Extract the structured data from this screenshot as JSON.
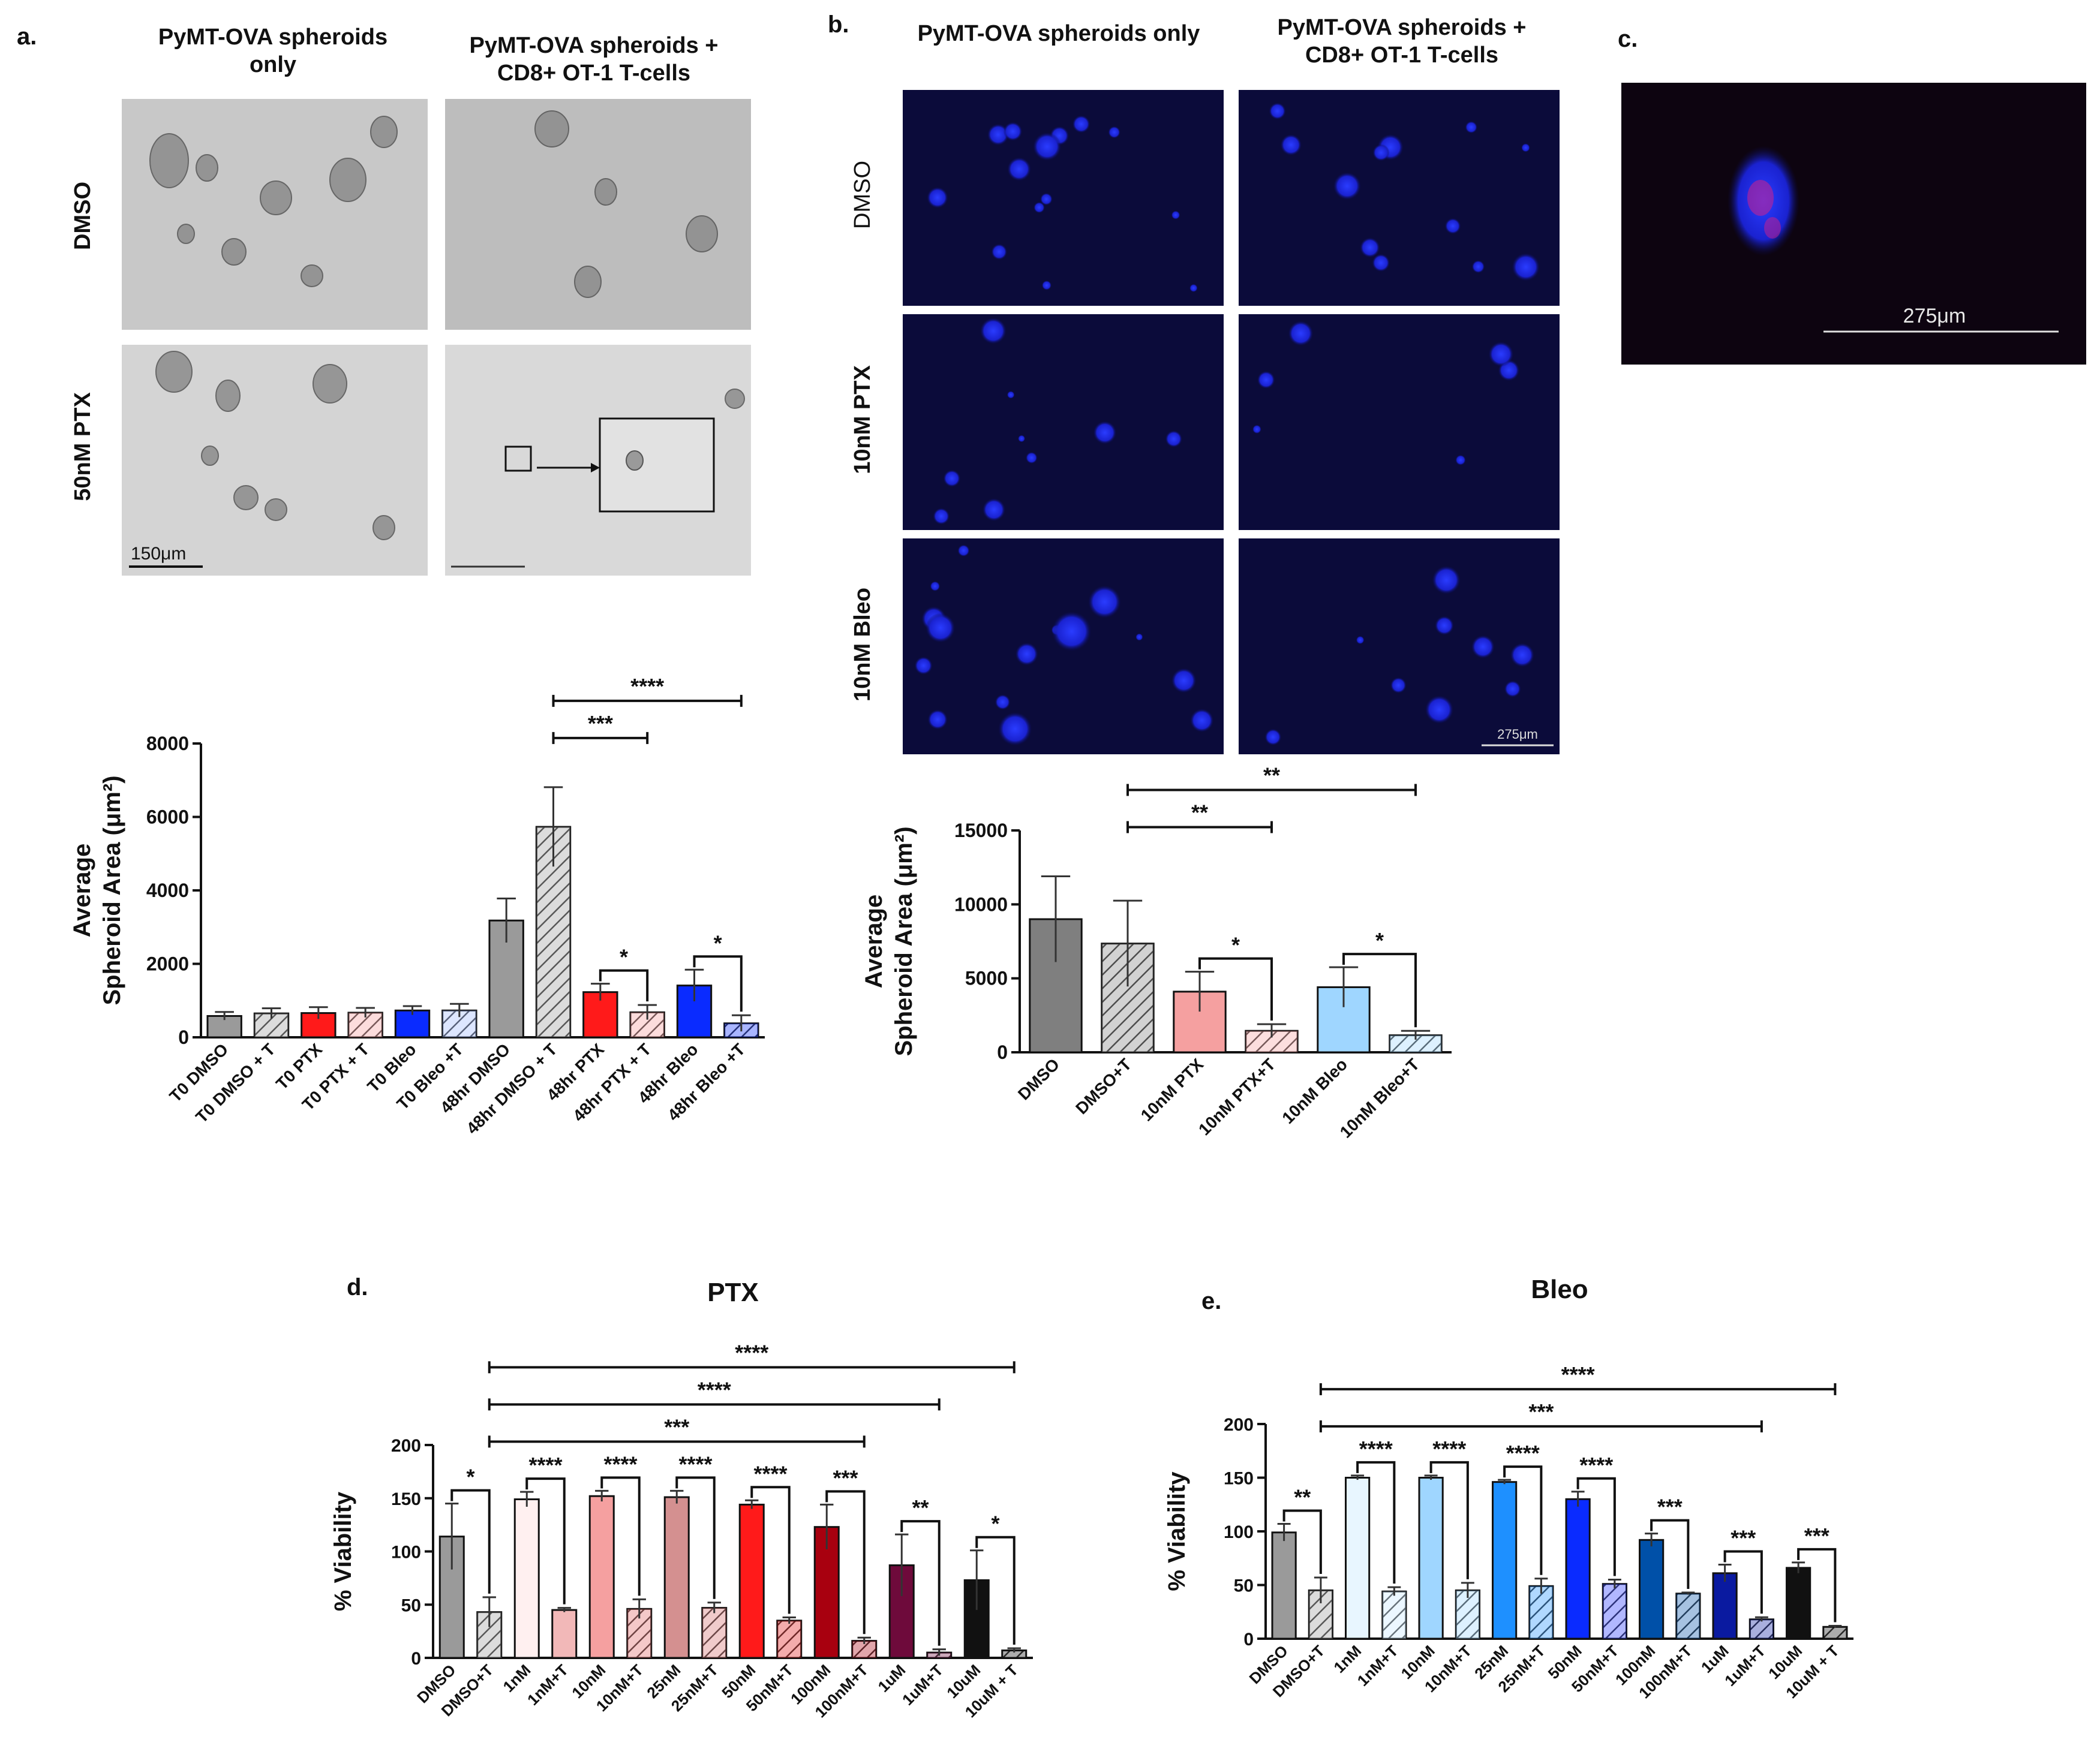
{
  "panel_a": {
    "letter": "a.",
    "col_headers": [
      "PyMT-OVA spheroids only",
      "PyMT-OVA spheroids + CD8+ OT-1 T-cells"
    ],
    "row_labels": [
      "DMSO",
      "50nM PTX"
    ],
    "scale_bar": "150μm"
  },
  "panel_b": {
    "letter": "b.",
    "col_headers": [
      "PyMT-OVA spheroids only",
      "PyMT-OVA spheroids + CD8+ OT-1 T-cells"
    ],
    "row_labels": [
      "DMSO",
      "10nM PTX",
      "10nM Bleo"
    ],
    "scale_bar": "275μm"
  },
  "panel_c": {
    "letter": "c.",
    "scale_bar": "275μm"
  },
  "panel_d": {
    "letter": "d."
  },
  "panel_e": {
    "letter": "e."
  },
  "colors": {
    "gray": "#9a9a9a",
    "red": "#ff1a1a",
    "blue": "#0a2bff",
    "pink": "#f59a9a",
    "lightblue": "#9fd6ff",
    "darkred": "#a8000f",
    "maroon": "#6e0a3b",
    "black": "#111111"
  },
  "chart_data": [
    {
      "id": "a",
      "type": "bar",
      "ylabel": [
        "Average",
        "Spheroid Area (μm²)"
      ],
      "ylim": [
        0,
        8000
      ],
      "yticks": [
        0,
        2000,
        4000,
        6000,
        8000
      ],
      "categories": [
        "T0 DMSO",
        "T0 DMSO + T",
        "T0 PTX",
        "T0 PTX + T",
        "T0 Bleo",
        "T0 Bleo +T",
        "48hr DMSO",
        "48hr DMSO + T",
        "48hr PTX",
        "48hr PTX + T",
        "48hr Bleo",
        "48hr Bleo +T"
      ],
      "values": [
        580,
        650,
        660,
        670,
        730,
        730,
        3180,
        5730,
        1230,
        680,
        1410,
        380
      ],
      "errors": [
        110,
        140,
        160,
        130,
        120,
        180,
        600,
        1080,
        230,
        200,
        430,
        220
      ],
      "colors": [
        "#9a9a9a",
        "#9a9a9a",
        "#ff1a1a",
        "#f59a9a",
        "#0a2bff",
        "#9fb6ff",
        "#9a9a9a",
        "#9a9a9a",
        "#ff1a1a",
        "#f59a9a",
        "#0a2bff",
        "#0a2bff"
      ],
      "hatched": [
        false,
        true,
        false,
        true,
        false,
        true,
        false,
        true,
        false,
        true,
        false,
        true
      ],
      "significance": [
        {
          "from": 7,
          "to": 11,
          "label": "****"
        },
        {
          "from": 7,
          "to": 9,
          "label": "***"
        },
        {
          "from": 8,
          "to": 9,
          "label": "*"
        },
        {
          "from": 10,
          "to": 11,
          "label": "*"
        }
      ]
    },
    {
      "id": "b",
      "type": "bar",
      "ylabel": [
        "Average",
        "Spheroid Area (μm²)"
      ],
      "ylim": [
        0,
        15000
      ],
      "yticks": [
        0,
        5000,
        10000,
        15000
      ],
      "categories": [
        "DMSO",
        "DMSO+T",
        "10nM PTX",
        "10nM PTX+T",
        "10nM Bleo",
        "10nM Bleo+T"
      ],
      "values": [
        9000,
        7350,
        4100,
        1450,
        4400,
        1150
      ],
      "errors": [
        2900,
        2900,
        1350,
        450,
        1350,
        300
      ],
      "colors": [
        "#7f7f7f",
        "#7f7f7f",
        "#f5a0a0",
        "#f5a0a0",
        "#9fd6ff",
        "#9fd6ff"
      ],
      "hatched": [
        false,
        true,
        false,
        true,
        false,
        true
      ],
      "significance": [
        {
          "from": 1,
          "to": 5,
          "label": "**"
        },
        {
          "from": 1,
          "to": 3,
          "label": "**"
        },
        {
          "from": 2,
          "to": 3,
          "label": "*"
        },
        {
          "from": 4,
          "to": 5,
          "label": "*"
        }
      ]
    },
    {
      "id": "d",
      "type": "bar",
      "title": "PTX",
      "ylabel": [
        "% Viability"
      ],
      "ylim": [
        0,
        200
      ],
      "yticks": [
        0,
        50,
        100,
        150,
        200
      ],
      "categories": [
        "DMSO",
        "DMSO+T",
        "1nM",
        "1nM+T",
        "10nM",
        "10nM+T",
        "25nM",
        "25nM+T",
        "50nM",
        "50nM+T",
        "100nM",
        "100nM+T",
        "1uM",
        "1uM+T",
        "10uM",
        "10uM + T"
      ],
      "values": [
        114,
        43,
        149,
        45,
        152,
        46,
        151,
        47,
        144,
        35,
        123,
        16,
        87,
        5,
        73,
        7
      ],
      "errors": [
        31,
        14,
        7,
        2,
        5,
        9,
        6,
        5,
        4,
        3,
        21,
        3,
        29,
        3,
        28,
        2
      ],
      "colors": [
        "#9a9a9a",
        "#9a9a9a",
        "#fff0f0",
        "#f2b8b8",
        "#f5a0a0",
        "#e06060",
        "#d49090",
        "#d46a6a",
        "#ff1a1a",
        "#e01010",
        "#a8000f",
        "#a8000f",
        "#6e0a3b",
        "#6e0a3b",
        "#111111",
        "#111111"
      ],
      "hatched": [
        false,
        true,
        false,
        false,
        false,
        true,
        false,
        true,
        false,
        true,
        false,
        true,
        false,
        true,
        false,
        true
      ],
      "significance": [
        {
          "from": 1,
          "to": 15,
          "label": "****"
        },
        {
          "from": 1,
          "to": 13,
          "label": "****"
        },
        {
          "from": 1,
          "to": 11,
          "label": "***"
        },
        {
          "from": 0,
          "to": 1,
          "label": "*"
        },
        {
          "from": 2,
          "to": 3,
          "label": "****"
        },
        {
          "from": 4,
          "to": 5,
          "label": "****"
        },
        {
          "from": 6,
          "to": 7,
          "label": "****"
        },
        {
          "from": 8,
          "to": 9,
          "label": "****"
        },
        {
          "from": 10,
          "to": 11,
          "label": "***"
        },
        {
          "from": 12,
          "to": 13,
          "label": "**"
        },
        {
          "from": 14,
          "to": 15,
          "label": "*"
        }
      ]
    },
    {
      "id": "e",
      "type": "bar",
      "title": "Bleo",
      "ylabel": [
        "% Viability"
      ],
      "ylim": [
        0,
        200
      ],
      "yticks": [
        0,
        50,
        100,
        150,
        200
      ],
      "categories": [
        "DMSO",
        "DMSO+T",
        "1nM",
        "1nM+T",
        "10nM",
        "10nM+T",
        "25nM",
        "25nM+T",
        "50nM",
        "50nM+T",
        "100nM",
        "100nM+T",
        "1uM",
        "1uM+T",
        "10uM",
        "10uM + T"
      ],
      "values": [
        99,
        45,
        150,
        44,
        150,
        45,
        146,
        49,
        130,
        51,
        92,
        42,
        61,
        18,
        66,
        11
      ],
      "errors": [
        8,
        12,
        2,
        4,
        2,
        7,
        2,
        7,
        7,
        4,
        6,
        1,
        8,
        2,
        5,
        1
      ],
      "colors": [
        "#9a9a9a",
        "#9a9a9a",
        "#e8f6ff",
        "#c8e8ff",
        "#9fd6ff",
        "#9fd6ff",
        "#1e90ff",
        "#1e90ff",
        "#0a2bff",
        "#2030ff",
        "#0050a8",
        "#0050a8",
        "#0a1aa0",
        "#0a1aa0",
        "#111111",
        "#111111"
      ],
      "hatched": [
        false,
        true,
        false,
        true,
        false,
        true,
        false,
        true,
        false,
        true,
        false,
        true,
        false,
        true,
        false,
        true
      ],
      "significance": [
        {
          "from": 1,
          "to": 15,
          "label": "****"
        },
        {
          "from": 1,
          "to": 13,
          "label": "***"
        },
        {
          "from": 0,
          "to": 1,
          "label": "**"
        },
        {
          "from": 2,
          "to": 3,
          "label": "****"
        },
        {
          "from": 4,
          "to": 5,
          "label": "****"
        },
        {
          "from": 6,
          "to": 7,
          "label": "****"
        },
        {
          "from": 8,
          "to": 9,
          "label": "****"
        },
        {
          "from": 10,
          "to": 11,
          "label": "***"
        },
        {
          "from": 12,
          "to": 13,
          "label": "***"
        },
        {
          "from": 14,
          "to": 15,
          "label": "***"
        }
      ]
    }
  ]
}
